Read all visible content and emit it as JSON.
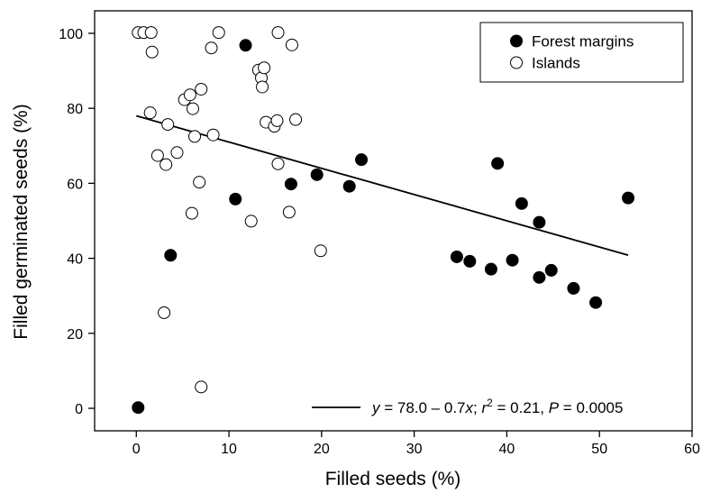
{
  "chart_data": {
    "type": "scatter",
    "xlabel": "Filled seeds (%)",
    "ylabel": "Filled germinated seeds (%)",
    "xlim": [
      -4.5,
      60
    ],
    "ylim": [
      -6,
      106
    ],
    "xticks": [
      0,
      10,
      20,
      30,
      40,
      50,
      60
    ],
    "yticks": [
      0,
      20,
      40,
      60,
      80,
      100
    ],
    "grid": false,
    "legend_position": "top-right",
    "series": [
      {
        "name": "Forest margins",
        "marker": "filled-circle",
        "color": "#000000",
        "points": [
          [
            0.2,
            0.2
          ],
          [
            3.7,
            40.8
          ],
          [
            10.7,
            55.8
          ],
          [
            11.8,
            96.8
          ],
          [
            16.7,
            59.8
          ],
          [
            19.5,
            62.3
          ],
          [
            23.0,
            59.2
          ],
          [
            24.3,
            66.3
          ],
          [
            34.6,
            40.4
          ],
          [
            36.0,
            39.2
          ],
          [
            38.3,
            37.1
          ],
          [
            39.0,
            65.3
          ],
          [
            40.6,
            39.5
          ],
          [
            41.6,
            54.6
          ],
          [
            43.5,
            49.6
          ],
          [
            43.5,
            34.9
          ],
          [
            44.8,
            36.8
          ],
          [
            47.2,
            32.0
          ],
          [
            49.6,
            28.2
          ],
          [
            53.1,
            56.1
          ]
        ]
      },
      {
        "name": "Islands",
        "marker": "open-circle",
        "color": "#000000",
        "points": [
          [
            0.2,
            100.2
          ],
          [
            0.8,
            100.2
          ],
          [
            1.6,
            100.2
          ],
          [
            1.7,
            95.0
          ],
          [
            1.5,
            78.8
          ],
          [
            2.3,
            67.4
          ],
          [
            3.0,
            25.5
          ],
          [
            3.2,
            65.0
          ],
          [
            3.4,
            75.7
          ],
          [
            4.4,
            68.2
          ],
          [
            5.2,
            82.3
          ],
          [
            5.8,
            83.6
          ],
          [
            6.0,
            52.0
          ],
          [
            6.1,
            79.9
          ],
          [
            6.3,
            72.5
          ],
          [
            6.8,
            60.3
          ],
          [
            7.0,
            85.1
          ],
          [
            7.0,
            5.7
          ],
          [
            8.1,
            96.1
          ],
          [
            8.3,
            72.9
          ],
          [
            8.9,
            100.2
          ],
          [
            12.4,
            49.9
          ],
          [
            13.2,
            90.2
          ],
          [
            13.5,
            88.1
          ],
          [
            13.6,
            85.7
          ],
          [
            13.8,
            90.8
          ],
          [
            14.0,
            76.3
          ],
          [
            14.9,
            75.2
          ],
          [
            15.2,
            76.7
          ],
          [
            15.3,
            65.2
          ],
          [
            15.3,
            100.2
          ],
          [
            16.5,
            52.3
          ],
          [
            16.8,
            96.9
          ],
          [
            17.2,
            77.0
          ],
          [
            19.9,
            42.0
          ]
        ]
      }
    ],
    "fit_line": {
      "intercept": 78.0,
      "slope": -0.7,
      "x_range": [
        0,
        53.1
      ],
      "label_parts": [
        "y",
        " = 78.0 – 0.7",
        "x",
        "; ",
        "r",
        "2",
        " = 0.21, ",
        "P",
        " = 0.0005"
      ]
    }
  }
}
